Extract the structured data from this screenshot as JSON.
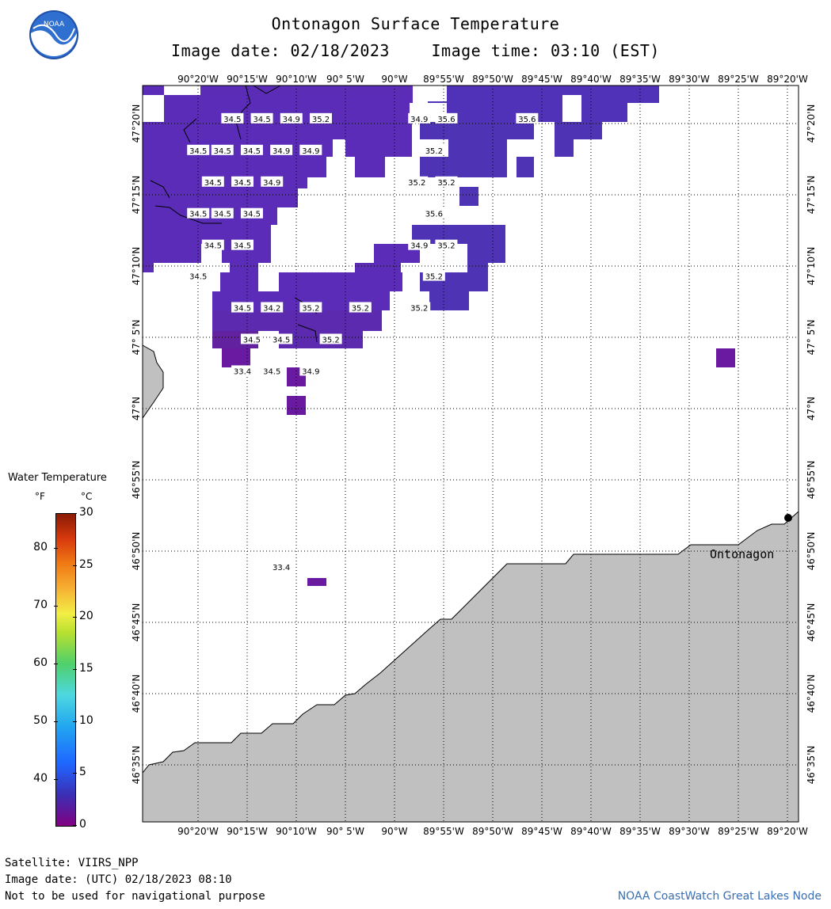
{
  "title": "Ontonagon Surface Temperature",
  "image_date_label": "Image date: 02/18/2023",
  "image_time_label": "Image time: 03:10 (EST)",
  "logo_icon": "noaa-logo",
  "longitude_labels": [
    "90°20'W",
    "90°15'W",
    "90°10'W",
    "90° 5'W",
    "90°W",
    "89°55'W",
    "89°50'W",
    "89°45'W",
    "89°40'W",
    "89°35'W",
    "89°30'W",
    "89°25'W",
    "89°20'W"
  ],
  "latitude_labels": [
    "47°20'N",
    "47°15'N",
    "47°10'N",
    "47° 5'N",
    "47°N",
    "46°55'N",
    "46°50'N",
    "46°45'N",
    "46°40'N",
    "46°35'N"
  ],
  "place_label": "Ontonagon",
  "legend": {
    "title": "Water Temperature",
    "unit_f": "°F",
    "unit_c": "°C",
    "fahrenheit_ticks": [
      "80",
      "70",
      "60",
      "50",
      "40"
    ],
    "celsius_ticks": [
      "30",
      "25",
      "20",
      "15",
      "10",
      "5",
      "0"
    ]
  },
  "temperature_labels": [
    {
      "value": "34.5",
      "lon": -90.275,
      "lat": 47.339
    },
    {
      "value": "34.5",
      "lon": -90.225,
      "lat": 47.339
    },
    {
      "value": "34.9",
      "lon": -90.175,
      "lat": 47.339
    },
    {
      "value": "35.2",
      "lon": -90.125,
      "lat": 47.339
    },
    {
      "value": "34.9",
      "lon": -89.958,
      "lat": 47.339
    },
    {
      "value": "35.6",
      "lon": -89.912,
      "lat": 47.339
    },
    {
      "value": "35.6",
      "lon": -89.775,
      "lat": 47.339
    },
    {
      "value": "34.5",
      "lon": -90.333,
      "lat": 47.302
    },
    {
      "value": "34.5",
      "lon": -90.292,
      "lat": 47.302
    },
    {
      "value": "34.5",
      "lon": -90.242,
      "lat": 47.302
    },
    {
      "value": "34.9",
      "lon": -90.192,
      "lat": 47.302
    },
    {
      "value": "34.9",
      "lon": -90.142,
      "lat": 47.302
    },
    {
      "value": "35.2",
      "lon": -89.933,
      "lat": 47.302
    },
    {
      "value": "34.5",
      "lon": -90.308,
      "lat": 47.265
    },
    {
      "value": "34.5",
      "lon": -90.258,
      "lat": 47.265
    },
    {
      "value": "34.9",
      "lon": -90.208,
      "lat": 47.265
    },
    {
      "value": "35.2",
      "lon": -89.962,
      "lat": 47.265
    },
    {
      "value": "35.2",
      "lon": -89.912,
      "lat": 47.265
    },
    {
      "value": "35.6",
      "lon": -89.933,
      "lat": 47.228
    },
    {
      "value": "34.5",
      "lon": -90.333,
      "lat": 47.228
    },
    {
      "value": "34.5",
      "lon": -90.292,
      "lat": 47.228
    },
    {
      "value": "34.5",
      "lon": -90.242,
      "lat": 47.228
    },
    {
      "value": "34.5",
      "lon": -90.308,
      "lat": 47.191
    },
    {
      "value": "34.5",
      "lon": -90.258,
      "lat": 47.191
    },
    {
      "value": "34.9",
      "lon": -89.958,
      "lat": 47.191
    },
    {
      "value": "35.2",
      "lon": -89.912,
      "lat": 47.191
    },
    {
      "value": "34.5",
      "lon": -90.333,
      "lat": 47.155
    },
    {
      "value": "35.2",
      "lon": -89.933,
      "lat": 47.155
    },
    {
      "value": "34.5",
      "lon": -90.258,
      "lat": 47.118
    },
    {
      "value": "34.2",
      "lon": -90.208,
      "lat": 47.118
    },
    {
      "value": "35.2",
      "lon": -90.142,
      "lat": 47.118
    },
    {
      "value": "35.2",
      "lon": -90.058,
      "lat": 47.118
    },
    {
      "value": "35.2",
      "lon": -89.958,
      "lat": 47.118
    },
    {
      "value": "34.5",
      "lon": -90.242,
      "lat": 47.081
    },
    {
      "value": "34.5",
      "lon": -90.192,
      "lat": 47.081
    },
    {
      "value": "35.2",
      "lon": -90.108,
      "lat": 47.081
    },
    {
      "value": "33.4",
      "lon": -90.258,
      "lat": 47.044
    },
    {
      "value": "34.5",
      "lon": -90.208,
      "lat": 47.044
    },
    {
      "value": "34.9",
      "lon": -90.142,
      "lat": 47.044
    },
    {
      "value": "33.4",
      "lon": -90.192,
      "lat": 46.815
    }
  ],
  "footer": {
    "satellite": "Satellite: VIIRS_NPP",
    "utc_date": "Image date: (UTC) 02/18/2023  08:10",
    "disclaimer": "Not to be used for navigational purpose",
    "credit": "NOAA CoastWatch Great Lakes Node"
  },
  "colors": {
    "land": "#c0c0c0",
    "water_temp_pixel": "#5a2cb8",
    "water_temp_pixel_dark": "#6a1aa0",
    "grid": "#000000"
  }
}
